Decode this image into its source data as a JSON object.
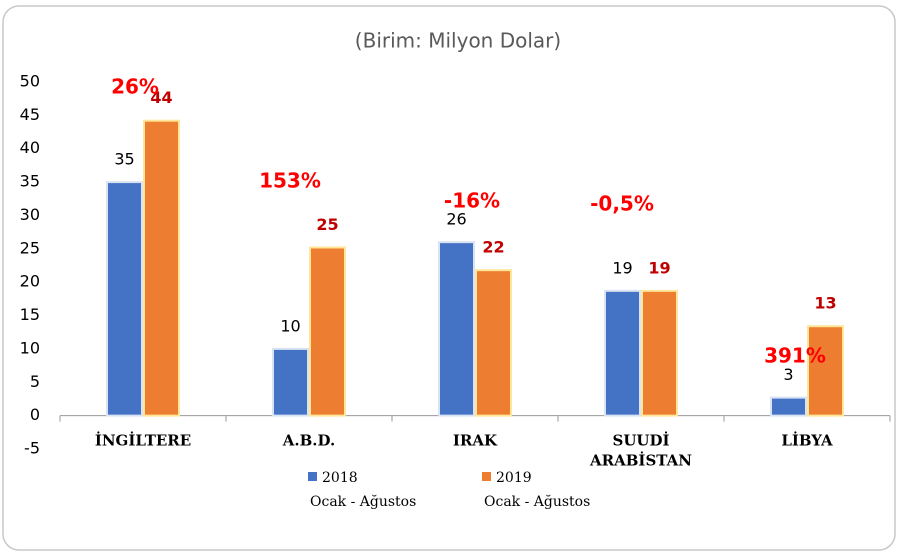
{
  "chart_data": {
    "type": "bar",
    "title": "(Birim: Milyon Dolar)",
    "categories": [
      "İNGİLTERE",
      "A.B.D.",
      "IRAK",
      "SUUDİ ARABİSTAN",
      "LİBYA"
    ],
    "series": [
      {
        "name": "2018 Ocak - Ağustos",
        "color": "#4472c4",
        "values": [
          35,
          10,
          26,
          18.7,
          2.7
        ],
        "value_labels": [
          "35",
          "10",
          "26",
          "19",
          "3"
        ]
      },
      {
        "name": "2019 Ocak - Ağustos",
        "color": "#ed7d31",
        "values": [
          44.2,
          25.2,
          21.8,
          18.7,
          13.4
        ],
        "value_labels": [
          "44",
          "25",
          "22",
          "19",
          "13"
        ]
      }
    ],
    "annotations": [
      "26%",
      "153%",
      "-16%",
      "-0,5%",
      "391%"
    ],
    "ylim": [
      -5,
      50
    ],
    "yticks": [
      -5,
      0,
      5,
      10,
      15,
      20,
      25,
      30,
      35,
      40,
      45,
      50
    ],
    "grid": false
  }
}
